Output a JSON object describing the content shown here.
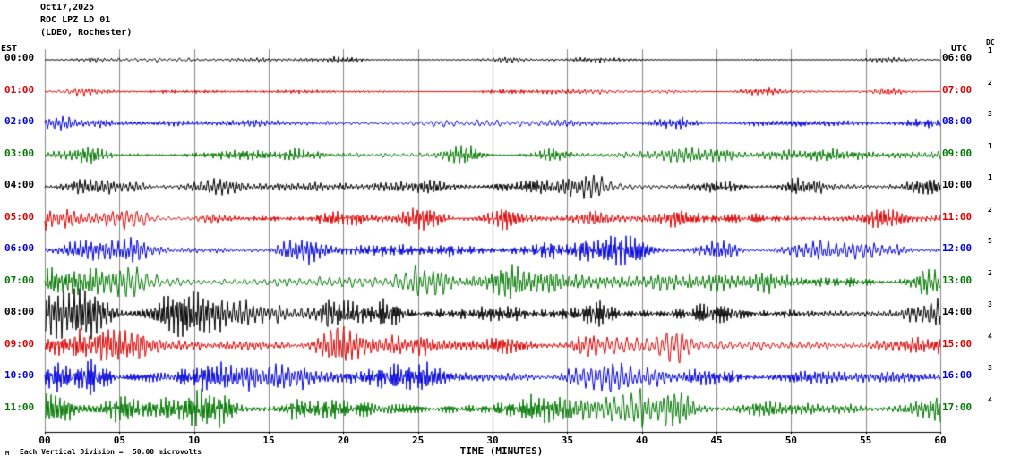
{
  "header": {
    "date": "Oct17,2025",
    "station": "ROC LPZ LD 01",
    "location": "(LDEO, Rochester)"
  },
  "axis": {
    "left_tz": "EST",
    "right_tz": "UTC",
    "dc_header": "DC",
    "x_label": "TIME (MINUTES)",
    "x_ticks": [
      "00",
      "05",
      "10",
      "15",
      "20",
      "25",
      "30",
      "35",
      "40",
      "45",
      "50",
      "55",
      "60"
    ]
  },
  "footer": {
    "scale_text": "Each Vertical Division =",
    "scale_value": "50.00 microvolts",
    "corner_mark": "M"
  },
  "colors": {
    "black": "#000000",
    "red": "#dd0000",
    "blue": "#0000dd",
    "green": "#007700",
    "grid": "#888888",
    "axis": "#000000"
  },
  "chart_data": {
    "type": "line",
    "subtype": "helicorder-seismogram",
    "title": "ROC LPZ LD 01 (LDEO, Rochester) Oct17,2025",
    "xlabel": "TIME (MINUTES)",
    "x_range_minutes": [
      0,
      60
    ],
    "x_tick_step_minutes": 5,
    "minutes_per_row": 60,
    "vertical_division_microvolts": 50.0,
    "row_color_cycle": [
      "#000000",
      "#dd0000",
      "#0000dd",
      "#007700"
    ],
    "grid": {
      "vertical_lines_every_minutes": 5,
      "color": "#888888"
    },
    "amp_units": "approx_peak_pixels_estimated_from_image",
    "rows": [
      {
        "est": "00:00",
        "utc": "06:00",
        "dc": "1",
        "color": "#000000",
        "amp": 3,
        "seed": 101
      },
      {
        "est": "01:00",
        "utc": "07:00",
        "dc": "2",
        "color": "#dd0000",
        "amp": 4,
        "seed": 202
      },
      {
        "est": "02:00",
        "utc": "08:00",
        "dc": "3",
        "color": "#0000dd",
        "amp": 6,
        "seed": 303
      },
      {
        "est": "03:00",
        "utc": "09:00",
        "dc": "1",
        "color": "#007700",
        "amp": 8,
        "seed": 404
      },
      {
        "est": "04:00",
        "utc": "10:00",
        "dc": "1",
        "color": "#000000",
        "amp": 10,
        "seed": 505
      },
      {
        "est": "05:00",
        "utc": "11:00",
        "dc": "2",
        "color": "#dd0000",
        "amp": 11,
        "seed": 606
      },
      {
        "est": "06:00",
        "utc": "12:00",
        "dc": "5",
        "color": "#0000dd",
        "amp": 12,
        "seed": 707
      },
      {
        "est": "07:00",
        "utc": "13:00",
        "dc": "2",
        "color": "#007700",
        "amp": 16,
        "seed": 808
      },
      {
        "est": "08:00",
        "utc": "14:00",
        "dc": "3",
        "color": "#000000",
        "amp": 21,
        "seed": 909
      },
      {
        "est": "09:00",
        "utc": "15:00",
        "dc": "4",
        "color": "#dd0000",
        "amp": 17,
        "seed": 1010
      },
      {
        "est": "10:00",
        "utc": "16:00",
        "dc": "3",
        "color": "#0000dd",
        "amp": 15,
        "seed": 1111
      },
      {
        "est": "11:00",
        "utc": "17:00",
        "dc": "4",
        "color": "#007700",
        "amp": 19,
        "seed": 1212
      }
    ]
  }
}
